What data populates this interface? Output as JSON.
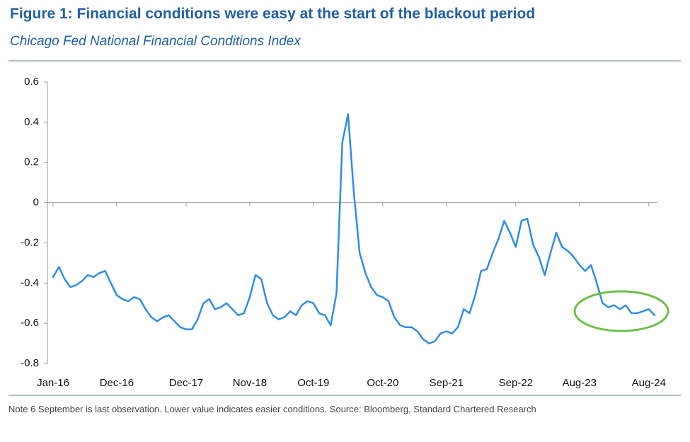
{
  "chart_data": {
    "type": "line",
    "title": "Figure 1: Financial conditions were easy at the start of the blackout period",
    "subtitle": "Chicago Fed National Financial Conditions Index",
    "note": "Note 6 September is last observation. Lower value indicates easier conditions. Source: Bloomberg, Standard Chartered Research",
    "categories": [
      "Jan-16",
      null,
      null,
      null,
      null,
      null,
      null,
      null,
      null,
      null,
      null,
      "Dec-16",
      null,
      null,
      null,
      null,
      null,
      null,
      null,
      null,
      null,
      null,
      null,
      "Dec-17",
      null,
      null,
      null,
      null,
      null,
      null,
      null,
      null,
      null,
      null,
      "Nov-18",
      null,
      null,
      null,
      null,
      null,
      null,
      null,
      null,
      null,
      null,
      "Oct-19",
      null,
      null,
      null,
      null,
      null,
      null,
      null,
      null,
      null,
      null,
      null,
      "Oct-20",
      null,
      null,
      null,
      null,
      null,
      null,
      null,
      null,
      null,
      null,
      "Sep-21",
      null,
      null,
      null,
      null,
      null,
      null,
      null,
      null,
      null,
      null,
      null,
      "Sep-22",
      null,
      null,
      null,
      null,
      null,
      null,
      null,
      null,
      null,
      null,
      "Aug-23",
      null,
      null,
      null,
      null,
      null,
      null,
      null,
      null,
      null,
      null,
      null,
      "Aug-24",
      null
    ],
    "values": [
      -0.37,
      -0.32,
      -0.38,
      -0.42,
      -0.41,
      -0.39,
      -0.36,
      -0.37,
      -0.35,
      -0.34,
      -0.4,
      -0.46,
      -0.48,
      -0.49,
      -0.47,
      -0.48,
      -0.53,
      -0.57,
      -0.59,
      -0.57,
      -0.56,
      -0.59,
      -0.62,
      -0.63,
      -0.63,
      -0.58,
      -0.5,
      -0.48,
      -0.53,
      -0.52,
      -0.5,
      -0.53,
      -0.56,
      -0.55,
      -0.47,
      -0.36,
      -0.38,
      -0.5,
      -0.56,
      -0.58,
      -0.57,
      -0.54,
      -0.56,
      -0.51,
      -0.49,
      -0.5,
      -0.55,
      -0.56,
      -0.61,
      -0.45,
      0.3,
      0.44,
      0.05,
      -0.25,
      -0.35,
      -0.42,
      -0.46,
      -0.47,
      -0.49,
      -0.57,
      -0.61,
      -0.62,
      -0.62,
      -0.64,
      -0.68,
      -0.7,
      -0.69,
      -0.65,
      -0.64,
      -0.65,
      -0.62,
      -0.53,
      -0.55,
      -0.46,
      -0.34,
      -0.33,
      -0.25,
      -0.18,
      -0.09,
      -0.15,
      -0.22,
      -0.09,
      -0.08,
      -0.21,
      -0.27,
      -0.36,
      -0.25,
      -0.15,
      -0.22,
      -0.24,
      -0.27,
      -0.31,
      -0.34,
      -0.31,
      -0.4,
      -0.5,
      -0.52,
      -0.51,
      -0.53,
      -0.51,
      -0.55,
      -0.55,
      -0.54,
      -0.53,
      -0.56
    ],
    "color": "#2f8de4",
    "ylim": [
      -0.8,
      0.6
    ],
    "yticks": [
      -0.8,
      -0.6,
      -0.4,
      -0.2,
      0,
      0.2,
      0.4,
      0.6
    ]
  }
}
